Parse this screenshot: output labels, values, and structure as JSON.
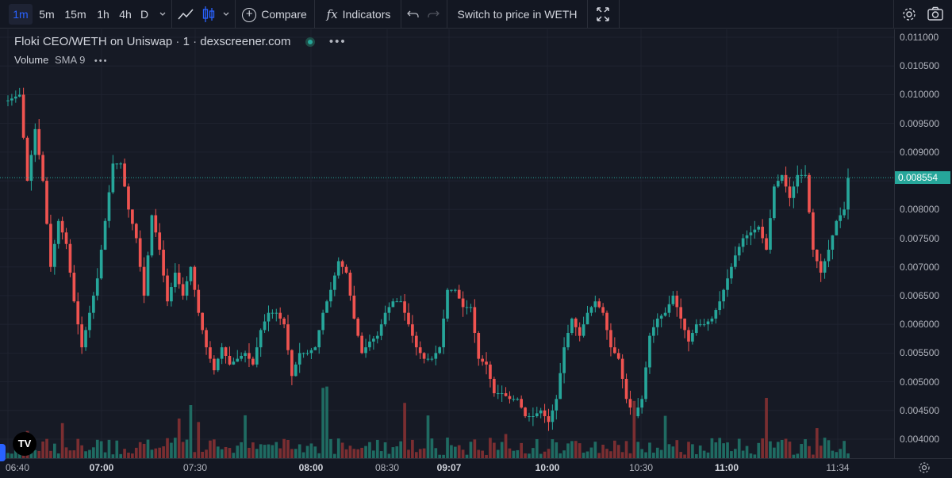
{
  "toolbar": {
    "intervals": [
      "1m",
      "5m",
      "15m",
      "1h",
      "4h",
      "D"
    ],
    "active_interval": "1m",
    "compare_label": "Compare",
    "indicators_label": "Indicators",
    "switch_label": "Switch to price in WETH"
  },
  "legend": {
    "symbol": "Floki CEO/WETH on Uniswap",
    "interval": "1",
    "source": "dexscreener.com",
    "volume_label": "Volume",
    "volume_indicator": "SMA 9"
  },
  "colors": {
    "up": "#26a69a",
    "down": "#ef5350",
    "up_vol": "#1f6b62",
    "down_vol": "#7a2e31",
    "accent": "#2962ff"
  },
  "last_price": "0.008554",
  "chart_data": {
    "type": "candlestick",
    "price_axis_labels": [
      "0.011000",
      "0.010500",
      "0.010000",
      "0.009500",
      "0.009000",
      "0.008500",
      "0.008000",
      "0.007500",
      "0.007000",
      "0.006500",
      "0.006000",
      "0.005500",
      "0.005000",
      "0.004500",
      "0.004000"
    ],
    "ylim": [
      0.0038,
      0.0112
    ],
    "time_axis_labels": [
      {
        "t": "06:40",
        "bold": false
      },
      {
        "t": "07:00",
        "bold": true
      },
      {
        "t": "07:30",
        "bold": false
      },
      {
        "t": "08:00",
        "bold": true
      },
      {
        "t": "08:30",
        "bold": false
      },
      {
        "t": "09:07",
        "bold": true
      },
      {
        "t": "10:00",
        "bold": true
      },
      {
        "t": "10:30",
        "bold": false
      },
      {
        "t": "11:00",
        "bold": true
      },
      {
        "t": "11:34",
        "bold": false
      }
    ],
    "close_anchors": [
      [
        0,
        0.0099
      ],
      [
        3,
        0.01
      ],
      [
        5,
        0.0085
      ],
      [
        7,
        0.0094
      ],
      [
        9,
        0.0085
      ],
      [
        11,
        0.007
      ],
      [
        13,
        0.0078
      ],
      [
        15,
        0.0074
      ],
      [
        17,
        0.0064
      ],
      [
        19,
        0.0056
      ],
      [
        21,
        0.0062
      ],
      [
        23,
        0.0068
      ],
      [
        25,
        0.0078
      ],
      [
        27,
        0.0088
      ],
      [
        29,
        0.0088
      ],
      [
        31,
        0.008
      ],
      [
        33,
        0.0075
      ],
      [
        35,
        0.0065
      ],
      [
        37,
        0.0079
      ],
      [
        39,
        0.0073
      ],
      [
        41,
        0.0064
      ],
      [
        43,
        0.0069
      ],
      [
        45,
        0.0065
      ],
      [
        47,
        0.007
      ],
      [
        49,
        0.0062
      ],
      [
        51,
        0.0056
      ],
      [
        53,
        0.0052
      ],
      [
        55,
        0.0056
      ],
      [
        57,
        0.0053
      ],
      [
        59,
        0.0054
      ],
      [
        61,
        0.0055
      ],
      [
        63,
        0.0053
      ],
      [
        65,
        0.0059
      ],
      [
        67,
        0.0062
      ],
      [
        69,
        0.0062
      ],
      [
        71,
        0.006
      ],
      [
        73,
        0.0051
      ],
      [
        75,
        0.0055
      ],
      [
        77,
        0.0055
      ],
      [
        79,
        0.0056
      ],
      [
        81,
        0.0062
      ],
      [
        83,
        0.0066
      ],
      [
        85,
        0.0071
      ],
      [
        87,
        0.0069
      ],
      [
        89,
        0.0061
      ],
      [
        91,
        0.0055
      ],
      [
        93,
        0.0057
      ],
      [
        95,
        0.0058
      ],
      [
        97,
        0.0062
      ],
      [
        99,
        0.0064
      ],
      [
        101,
        0.0064
      ],
      [
        103,
        0.006
      ],
      [
        105,
        0.0056
      ],
      [
        107,
        0.0054
      ],
      [
        109,
        0.0054
      ],
      [
        111,
        0.0056
      ],
      [
        113,
        0.0066
      ],
      [
        115,
        0.0066
      ],
      [
        117,
        0.0063
      ],
      [
        119,
        0.0063
      ],
      [
        121,
        0.0054
      ],
      [
        123,
        0.0053
      ],
      [
        125,
        0.0048
      ],
      [
        127,
        0.0048
      ],
      [
        129,
        0.0047
      ],
      [
        131,
        0.0047
      ],
      [
        133,
        0.0044
      ],
      [
        135,
        0.0044
      ],
      [
        137,
        0.0045
      ],
      [
        139,
        0.0043
      ],
      [
        141,
        0.0047
      ],
      [
        143,
        0.0056
      ],
      [
        145,
        0.0061
      ],
      [
        147,
        0.0058
      ],
      [
        149,
        0.0062
      ],
      [
        151,
        0.0064
      ],
      [
        153,
        0.0062
      ],
      [
        155,
        0.0056
      ],
      [
        157,
        0.0054
      ],
      [
        159,
        0.0047
      ],
      [
        161,
        0.0044
      ],
      [
        163,
        0.0047
      ],
      [
        165,
        0.0058
      ],
      [
        167,
        0.0061
      ],
      [
        169,
        0.0062
      ],
      [
        171,
        0.0065
      ],
      [
        173,
        0.0061
      ],
      [
        175,
        0.0057
      ],
      [
        177,
        0.006
      ],
      [
        179,
        0.006
      ],
      [
        181,
        0.0061
      ],
      [
        183,
        0.0064
      ],
      [
        185,
        0.0068
      ],
      [
        187,
        0.0072
      ],
      [
        189,
        0.0075
      ],
      [
        191,
        0.0076
      ],
      [
        193,
        0.0077
      ],
      [
        195,
        0.0073
      ],
      [
        197,
        0.0084
      ],
      [
        199,
        0.0086
      ],
      [
        201,
        0.0082
      ],
      [
        203,
        0.0086
      ],
      [
        205,
        0.0086
      ],
      [
        207,
        0.0073
      ],
      [
        209,
        0.0069
      ],
      [
        211,
        0.0073
      ],
      [
        213,
        0.0078
      ],
      [
        215,
        0.008
      ],
      [
        216,
        0.00855
      ]
    ],
    "last_price": 0.008554
  }
}
